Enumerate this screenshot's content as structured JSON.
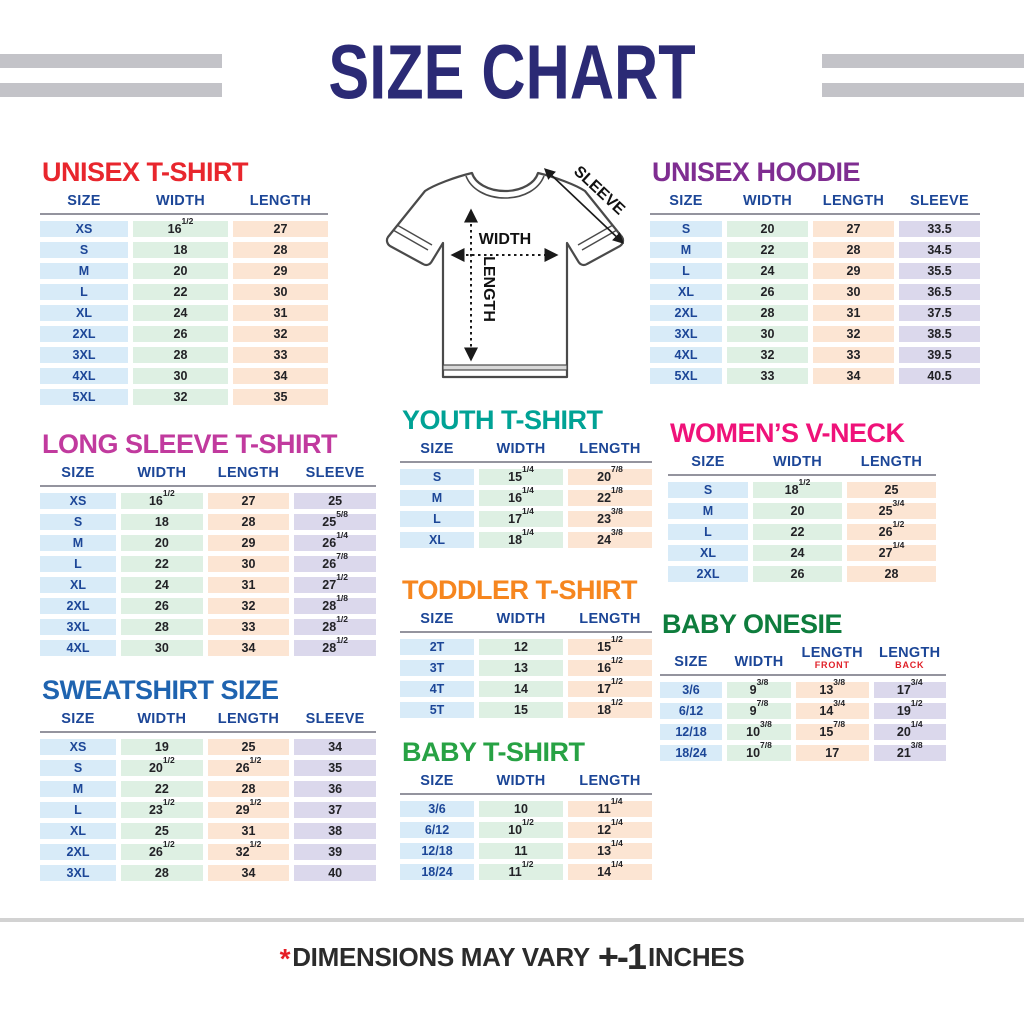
{
  "title": "SIZE CHART",
  "footer": {
    "asterisk": "*",
    "text": "DIMENSIONS MAY VARY",
    "plus_minus": "+-1",
    "unit": "INCHES"
  },
  "diagram": {
    "labels": {
      "width": "WIDTH",
      "length": "LENGTH",
      "sleeve": "SLEEVE"
    }
  },
  "colors": {
    "title": "#2b2a75",
    "header_text": "#1c4697",
    "stripe_gray": "#c3c3c8",
    "cell_fills": {
      "blue": "#d8ebf8",
      "green": "#def0e3",
      "peach": "#fce5d3",
      "lavender": "#dbd8ec"
    },
    "length_sub_red": "#e02028",
    "footer_asterisk_red": "#e51e25"
  },
  "tables": [
    {
      "heading": "UNISEX T-SHIRT",
      "heading_color": "#e8262d",
      "grid_columns": "88px 1fr 1fr",
      "columns": [
        "SIZE",
        "WIDTH",
        "LENGTH"
      ],
      "col_colors": [
        "blue",
        "green",
        "peach"
      ],
      "rows": [
        [
          "XS",
          "16 1/2",
          "27"
        ],
        [
          "S",
          "18",
          "28"
        ],
        [
          "M",
          "20",
          "29"
        ],
        [
          "L",
          "22",
          "30"
        ],
        [
          "XL",
          "24",
          "31"
        ],
        [
          "2XL",
          "26",
          "32"
        ],
        [
          "3XL",
          "28",
          "33"
        ],
        [
          "4XL",
          "30",
          "34"
        ],
        [
          "5XL",
          "32",
          "35"
        ]
      ]
    },
    {
      "heading": "UNISEX HOODIE",
      "heading_color": "#7f2d91",
      "grid_columns": "72px 1fr 1fr 1fr",
      "columns": [
        "SIZE",
        "WIDTH",
        "LENGTH",
        "SLEEVE"
      ],
      "col_colors": [
        "blue",
        "green",
        "peach",
        "lavender"
      ],
      "rows": [
        [
          "S",
          "20",
          "27",
          "33.5"
        ],
        [
          "M",
          "22",
          "28",
          "34.5"
        ],
        [
          "L",
          "24",
          "29",
          "35.5"
        ],
        [
          "XL",
          "26",
          "30",
          "36.5"
        ],
        [
          "2XL",
          "28",
          "31",
          "37.5"
        ],
        [
          "3XL",
          "30",
          "32",
          "38.5"
        ],
        [
          "4XL",
          "32",
          "33",
          "39.5"
        ],
        [
          "5XL",
          "33",
          "34",
          "40.5"
        ]
      ]
    },
    {
      "heading": "LONG SLEEVE T-SHIRT",
      "heading_color": "#c13a9e",
      "grid_columns": "76px 1fr 1fr 1fr",
      "columns": [
        "SIZE",
        "WIDTH",
        "LENGTH",
        "SLEEVE"
      ],
      "col_colors": [
        "blue",
        "green",
        "peach",
        "lavender"
      ],
      "rows": [
        [
          "XS",
          "16 1/2",
          "27",
          "25"
        ],
        [
          "S",
          "18",
          "28",
          "25 5/8"
        ],
        [
          "M",
          "20",
          "29",
          "26 1/4"
        ],
        [
          "L",
          "22",
          "30",
          "26 7/8"
        ],
        [
          "XL",
          "24",
          "31",
          "27 1/2"
        ],
        [
          "2XL",
          "26",
          "32",
          "28 1/8"
        ],
        [
          "3XL",
          "28",
          "33",
          "28 1/2"
        ],
        [
          "4XL",
          "30",
          "34",
          "28 1/2"
        ]
      ]
    },
    {
      "heading": "YOUTH T-SHIRT",
      "heading_color": "#00a295",
      "grid_columns": "74px 1fr 1fr",
      "columns": [
        "SIZE",
        "WIDTH",
        "LENGTH"
      ],
      "col_colors": [
        "blue",
        "green",
        "peach"
      ],
      "rows": [
        [
          "S",
          "15 1/4",
          "20 7/8"
        ],
        [
          "M",
          "16 1/4",
          "22 1/8"
        ],
        [
          "L",
          "17 1/4",
          "23 3/8"
        ],
        [
          "XL",
          "18 1/4",
          "24 3/8"
        ]
      ]
    },
    {
      "heading": "WOMEN’S V-NECK",
      "heading_color": "#ef1279",
      "grid_columns": "80px 1fr 1fr",
      "columns": [
        "SIZE",
        "WIDTH",
        "LENGTH"
      ],
      "col_colors": [
        "blue",
        "green",
        "peach"
      ],
      "rows": [
        [
          "S",
          "18 1/2",
          "25"
        ],
        [
          "M",
          "20",
          "25 3/4"
        ],
        [
          "L",
          "22",
          "26 1/2"
        ],
        [
          "XL",
          "24",
          "27 1/4"
        ],
        [
          "2XL",
          "26",
          "28"
        ]
      ]
    },
    {
      "heading": "TODDLER T-SHIRT",
      "heading_color": "#f6861f",
      "grid_columns": "74px 1fr 1fr",
      "columns": [
        "SIZE",
        "WIDTH",
        "LENGTH"
      ],
      "col_colors": [
        "blue",
        "green",
        "peach"
      ],
      "rows": [
        [
          "2T",
          "12",
          "15 1/2"
        ],
        [
          "3T",
          "13",
          "16 1/2"
        ],
        [
          "4T",
          "14",
          "17 1/2"
        ],
        [
          "5T",
          "15",
          "18 1/2"
        ]
      ]
    },
    {
      "heading": "BABY ONESIE",
      "heading_color": "#0e7d3d",
      "grid_columns": "62px 64px 1fr 1fr",
      "columns": [
        "SIZE",
        "WIDTH",
        {
          "label": "LENGTH",
          "sub": "FRONT"
        },
        {
          "label": "LENGTH",
          "sub": "BACK"
        }
      ],
      "col_colors": [
        "blue",
        "green",
        "peach",
        "lavender"
      ],
      "rows": [
        [
          "3/6",
          "9 3/8",
          "13 3/8",
          "17 3/4"
        ],
        [
          "6/12",
          "9 7/8",
          "14 3/4",
          "19 1/2"
        ],
        [
          "12/18",
          "10 3/8",
          "15 7/8",
          "20 1/4"
        ],
        [
          "18/24",
          "10 7/8",
          "17",
          "21 3/8"
        ]
      ]
    },
    {
      "heading": "SWEATSHIRT SIZE",
      "heading_color": "#1f64b0",
      "grid_columns": "76px 1fr 1fr 1fr",
      "columns": [
        "SIZE",
        "WIDTH",
        "LENGTH",
        "SLEEVE"
      ],
      "col_colors": [
        "blue",
        "green",
        "peach",
        "lavender"
      ],
      "rows": [
        [
          "XS",
          "19",
          "25",
          "34"
        ],
        [
          "S",
          "20 1/2",
          "26 1/2",
          "35"
        ],
        [
          "M",
          "22",
          "28",
          "36"
        ],
        [
          "L",
          "23 1/2",
          "29 1/2",
          "37"
        ],
        [
          "XL",
          "25",
          "31",
          "38"
        ],
        [
          "2XL",
          "26 1/2",
          "32 1/2",
          "39"
        ],
        [
          "3XL",
          "28",
          "34",
          "40"
        ]
      ]
    },
    {
      "heading": "BABY T-SHIRT",
      "heading_color": "#27a244",
      "grid_columns": "74px 1fr 1fr",
      "columns": [
        "SIZE",
        "WIDTH",
        "LENGTH"
      ],
      "col_colors": [
        "blue",
        "green",
        "peach"
      ],
      "rows": [
        [
          "3/6",
          "10",
          "11 1/4"
        ],
        [
          "6/12",
          "10 1/2",
          "12 1/4"
        ],
        [
          "12/18",
          "11",
          "13 1/4"
        ],
        [
          "18/24",
          "11 1/2",
          "14 1/4"
        ]
      ]
    }
  ]
}
